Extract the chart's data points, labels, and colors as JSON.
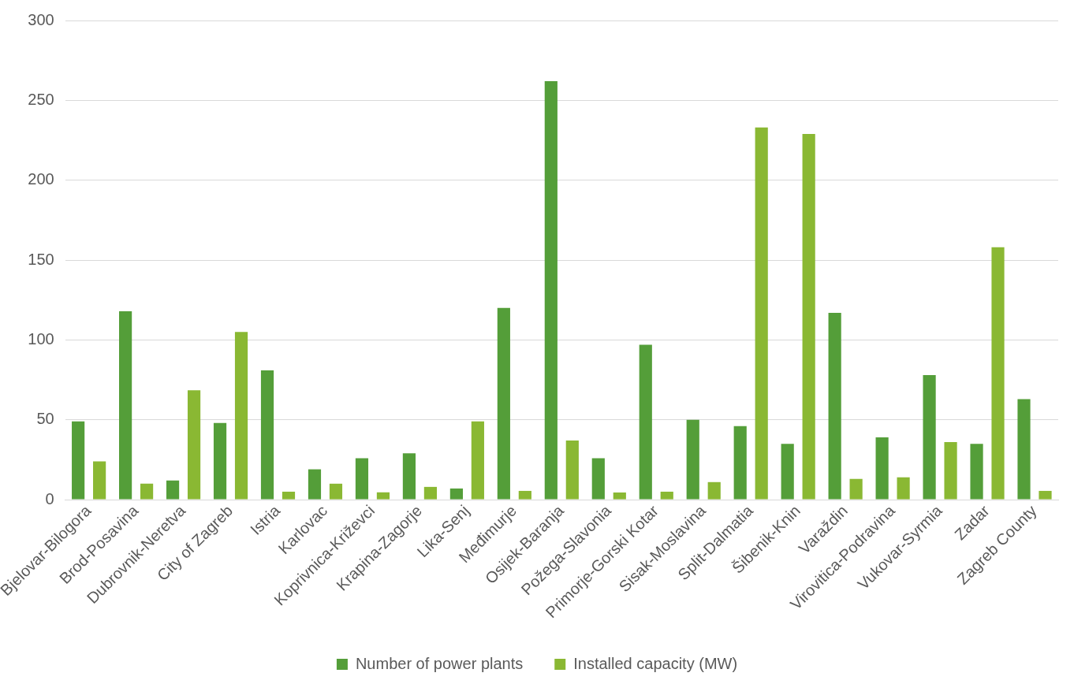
{
  "chart_data": {
    "type": "bar",
    "categories": [
      "Bjelovar-Bilogora",
      "Brod-Posavina",
      "Dubrovnik-Neretva",
      "City of Zagreb",
      "Istria",
      "Karlovac",
      "Koprivnica-Križevci",
      "Krapina-Zagorje",
      "Lika-Senj",
      "Međimurje",
      "Osijek-Baranja",
      "Požega-Slavonia",
      "Primorje-Gorski Kotar",
      "Sisak-Moslavina",
      "Split-Dalmatia",
      "Šibenik-Knin",
      "Varaždin",
      "Virovitica-Podravina",
      "Vukovar-Syrmia",
      "Zadar",
      "Zagreb County"
    ],
    "series": [
      {
        "name": "Number of power plants",
        "color": "#549e39",
        "values": [
          49,
          118,
          12,
          48,
          81,
          19,
          26,
          29,
          7,
          120,
          262,
          26,
          97,
          50,
          46,
          35,
          117,
          39,
          78,
          35,
          63
        ]
      },
      {
        "name": "Installed capacity (MW)",
        "color": "#8ab833",
        "values": [
          24,
          10,
          68.5,
          105,
          5,
          10,
          4.6,
          8,
          49,
          5.5,
          37,
          4.5,
          5,
          11,
          233,
          229,
          13,
          14,
          36,
          158,
          5.5
        ]
      }
    ],
    "ylim": [
      0,
      300
    ],
    "yticks": [
      0,
      50,
      100,
      150,
      200,
      250,
      300
    ],
    "grid": "y",
    "legend": "bottom"
  }
}
